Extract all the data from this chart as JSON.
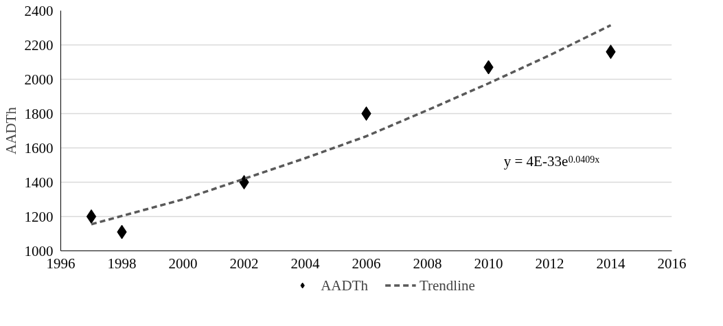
{
  "chart_data": {
    "type": "scatter",
    "ylabel": "AADTh",
    "xlim": [
      1996,
      2016
    ],
    "xticks": [
      1996,
      1998,
      2000,
      2002,
      2004,
      2006,
      2008,
      2010,
      2012,
      2014,
      2016
    ],
    "ylim": [
      1000,
      2400
    ],
    "yticks": [
      1000,
      1200,
      1400,
      1600,
      1800,
      2000,
      2200,
      2400
    ],
    "grid": "y",
    "legend": "bottom",
    "annotations": [
      "y = 4E-33e$^{0.0409x}$"
    ],
    "series": [
      {
        "name": "AADTh",
        "marker": "diamond",
        "color": "#000000",
        "x": [
          1997,
          1998,
          2002,
          2006,
          2010,
          2014
        ],
        "values": [
          1200,
          1110,
          1400,
          1800,
          2070,
          2160
        ]
      },
      {
        "name": "Trendline",
        "type": "line",
        "line_style": "dashed",
        "color": "#595959",
        "x": [
          1997,
          2000,
          2002,
          2004,
          2006,
          2008,
          2010,
          2012,
          2014
        ],
        "values": [
          1155,
          1300,
          1420,
          1540,
          1668,
          1820,
          1976,
          2140,
          2315
        ]
      }
    ]
  }
}
